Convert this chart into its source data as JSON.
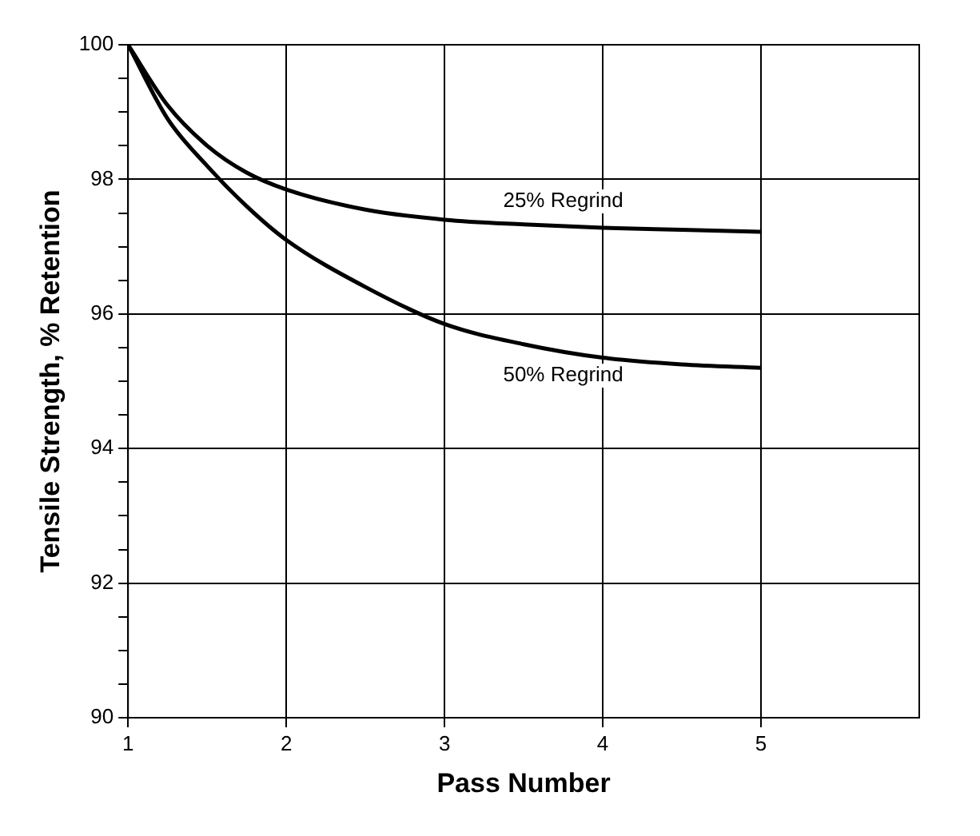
{
  "chart_data": {
    "type": "line",
    "xlabel": "Pass Number",
    "ylabel": "Tensile Strength, % Retention",
    "x": [
      1,
      1.25,
      1.5,
      1.75,
      2,
      2.5,
      3,
      3.5,
      4,
      4.5,
      5
    ],
    "series": [
      {
        "name": "25% Regrind",
        "color": "#000000",
        "values": [
          100,
          99.1,
          98.5,
          98.1,
          97.85,
          97.55,
          97.4,
          97.33,
          97.28,
          97.25,
          97.22
        ]
      },
      {
        "name": "50% Regrind",
        "color": "#000000",
        "values": [
          100,
          98.9,
          98.2,
          97.6,
          97.1,
          96.4,
          95.85,
          95.55,
          95.35,
          95.25,
          95.2
        ]
      }
    ],
    "xlim": [
      1,
      6
    ],
    "xticks": [
      1,
      2,
      3,
      4,
      5
    ],
    "ylim": [
      90,
      100
    ],
    "yticks": [
      90,
      {
        "value": 90.5,
        "label": null
      },
      {
        "value": 91,
        "label": null
      },
      {
        "value": 91.5,
        "label": null
      },
      92,
      {
        "value": 92.5,
        "label": null
      },
      {
        "value": 93,
        "label": null
      },
      {
        "value": 93.5,
        "label": null
      },
      94,
      {
        "value": 94.5,
        "label": null
      },
      {
        "value": 95,
        "label": null
      },
      {
        "value": 95.5,
        "label": null
      },
      96,
      {
        "value": 96.5,
        "label": null
      },
      {
        "value": 97,
        "label": null
      },
      {
        "value": 97.5,
        "label": null
      },
      98,
      {
        "value": 98.5,
        "label": null
      },
      {
        "value": 99,
        "label": null
      },
      {
        "value": 99.5,
        "label": null
      },
      100
    ],
    "grid": true,
    "legend": false,
    "marker": "none",
    "line_style": "solid"
  }
}
